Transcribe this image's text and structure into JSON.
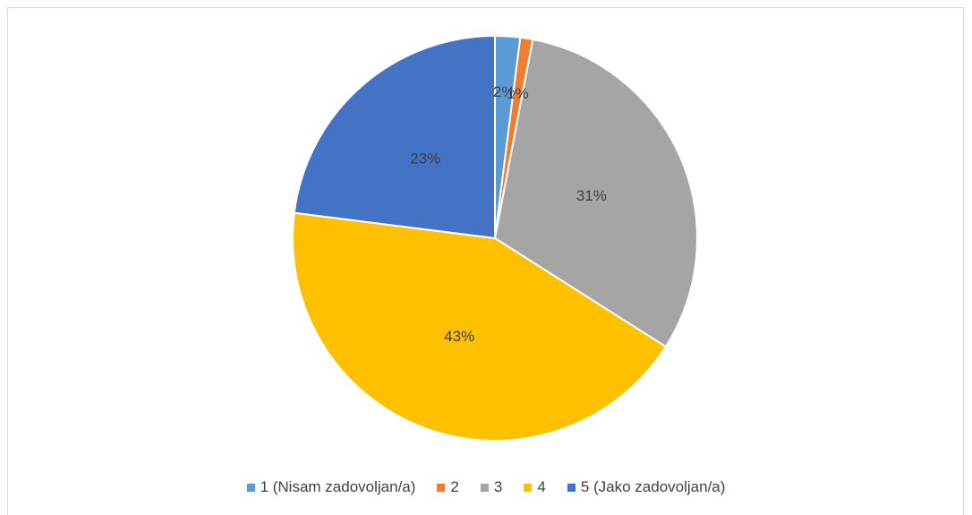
{
  "chart_data": {
    "type": "pie",
    "categories": [
      "1 (Nisam zadovoljan/a)",
      "2",
      "3",
      "4",
      "5 (Jako zadovoljan/a)"
    ],
    "values": [
      2,
      1,
      31,
      43,
      23
    ],
    "value_labels": [
      "2%",
      "1%",
      "31%",
      "43%",
      "23%"
    ],
    "colors": [
      "#5b9bd5",
      "#ed7d31",
      "#a5a5a5",
      "#ffc000",
      "#4472c4"
    ],
    "legend": "bottom"
  }
}
